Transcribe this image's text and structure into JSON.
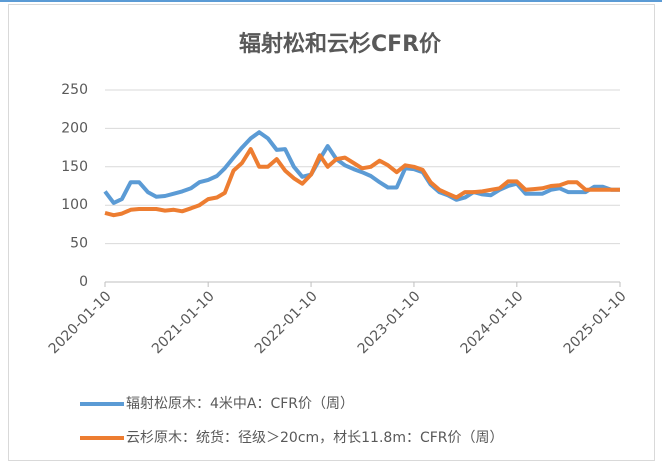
{
  "chart_data": {
    "type": "line",
    "title": "辐射松和云杉CFR价",
    "x": [
      "2020-01-10",
      "2020-02-10",
      "2020-03-10",
      "2020-04-10",
      "2020-05-10",
      "2020-06-10",
      "2020-07-10",
      "2020-08-10",
      "2020-09-10",
      "2020-10-10",
      "2020-11-10",
      "2020-12-10",
      "2021-01-10",
      "2021-02-10",
      "2021-03-10",
      "2021-04-10",
      "2021-05-10",
      "2021-06-10",
      "2021-07-10",
      "2021-08-10",
      "2021-09-10",
      "2021-10-10",
      "2021-11-10",
      "2021-12-10",
      "2022-01-10",
      "2022-02-10",
      "2022-03-10",
      "2022-04-10",
      "2022-05-10",
      "2022-06-10",
      "2022-07-10",
      "2022-08-10",
      "2022-09-10",
      "2022-10-10",
      "2022-11-10",
      "2022-12-10",
      "2023-01-10",
      "2023-02-10",
      "2023-03-10",
      "2023-04-10",
      "2023-05-10",
      "2023-06-10",
      "2023-07-10",
      "2023-08-10",
      "2023-09-10",
      "2023-10-10",
      "2023-11-10",
      "2023-12-10",
      "2024-01-10",
      "2024-02-10",
      "2024-03-10",
      "2024-04-10",
      "2024-05-10",
      "2024-06-10",
      "2024-07-10",
      "2024-08-10",
      "2024-09-10",
      "2024-10-10",
      "2024-11-10",
      "2024-12-10",
      "2025-01-10"
    ],
    "series": [
      {
        "name": "辐射松原木：4米中A：CFR价（周）",
        "color": "#5b9bd5",
        "values": [
          118,
          103,
          108,
          130,
          130,
          117,
          111,
          112,
          115,
          118,
          122,
          130,
          133,
          138,
          148,
          162,
          175,
          187,
          195,
          187,
          172,
          173,
          150,
          137,
          140,
          160,
          177,
          160,
          152,
          147,
          143,
          138,
          130,
          123,
          123,
          148,
          147,
          143,
          127,
          117,
          113,
          107,
          110,
          117,
          114,
          113,
          120,
          125,
          128,
          115,
          115,
          115,
          120,
          122,
          117,
          117,
          117,
          124,
          124,
          120,
          120
        ]
      },
      {
        "name": "云杉原木：统货：径级＞20cm，材长11.8m：CFR价（周）",
        "color": "#ed7d31",
        "values": [
          90,
          87,
          89,
          94,
          95,
          95,
          95,
          93,
          94,
          92,
          96,
          100,
          108,
          110,
          116,
          145,
          155,
          173,
          150,
          150,
          160,
          145,
          135,
          128,
          140,
          165,
          150,
          160,
          162,
          155,
          148,
          150,
          158,
          152,
          143,
          152,
          150,
          146,
          130,
          120,
          115,
          110,
          117,
          117,
          118,
          120,
          122,
          131,
          131,
          120,
          121,
          122,
          125,
          126,
          130,
          130,
          120,
          120,
          120,
          120,
          120
        ]
      }
    ],
    "xlim": [
      "2020-01-10",
      "2025-01-10"
    ],
    "xticks": [
      "2020-01-10",
      "2021-01-10",
      "2022-01-10",
      "2023-01-10",
      "2024-01-10",
      "2025-01-10"
    ],
    "ylim": [
      0,
      250
    ],
    "yticks": [
      0,
      50,
      100,
      150,
      200,
      250
    ],
    "grid": true,
    "legend": "bottom"
  }
}
